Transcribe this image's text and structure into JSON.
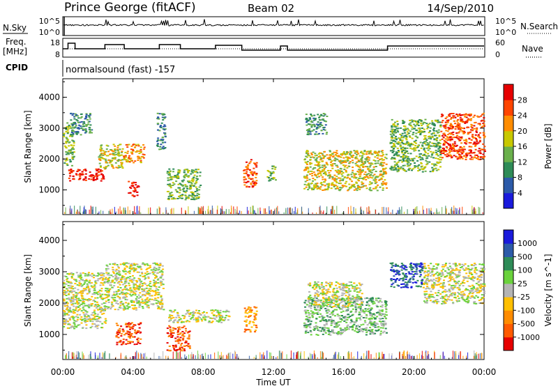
{
  "header": {
    "station": "Prince George (fitACF)",
    "beam": "Beam 02",
    "date": "14/Sep/2010"
  },
  "side_labels": {
    "nsky": "N.Sky",
    "nsearch": "N.Search",
    "freq": "Freq.",
    "freq_unit": "[MHz]",
    "nave": "Nave",
    "cpid": "CPID"
  },
  "cpid_text": "normalsound (fast) -157",
  "ticks": {
    "nsky_top": "10^5",
    "nsky_bottom": "10^0",
    "nsearch_top": "10^5",
    "nsearch_bottom": "10^0",
    "freq_top": "18",
    "freq_bottom": "8",
    "nave_top": "60",
    "nave_bottom": "0"
  },
  "chart_data": [
    {
      "type": "heatmap",
      "panel": "power",
      "ylabel": "Slant Range [km]",
      "yticks": [
        "1000",
        "2000",
        "3000",
        "4000"
      ],
      "ylim": [
        200,
        4600
      ],
      "xlim_hours": [
        0,
        24
      ],
      "colorbar": {
        "label": "Power [dB]",
        "ticks": [
          "4",
          "8",
          "12",
          "16",
          "20",
          "24",
          "28"
        ],
        "colors": [
          "#1a1adc",
          "#2c5aa8",
          "#2e8b57",
          "#6ab04c",
          "#c8c800",
          "#ff8c00",
          "#ff4500",
          "#e60000"
        ]
      },
      "echo_regions": [
        {
          "t0": 0.0,
          "t1": 0.6,
          "r0": 1800,
          "r1": 3200,
          "level": 3
        },
        {
          "t0": 0.3,
          "t1": 2.3,
          "r0": 1300,
          "r1": 1700,
          "level": 7
        },
        {
          "t0": 0.4,
          "t1": 1.6,
          "r0": 2800,
          "r1": 3500,
          "level": 2
        },
        {
          "t0": 2.0,
          "t1": 3.4,
          "r0": 1700,
          "r1": 2500,
          "level": 4
        },
        {
          "t0": 3.4,
          "t1": 4.6,
          "r0": 1900,
          "r1": 2500,
          "level": 5
        },
        {
          "t0": 3.7,
          "t1": 4.3,
          "r0": 800,
          "r1": 1300,
          "level": 7
        },
        {
          "t0": 5.3,
          "t1": 5.8,
          "r0": 2300,
          "r1": 3500,
          "level": 2
        },
        {
          "t0": 5.9,
          "t1": 7.8,
          "r0": 700,
          "r1": 1700,
          "level": 3
        },
        {
          "t0": 10.2,
          "t1": 11.0,
          "r0": 1100,
          "r1": 2000,
          "level": 6
        },
        {
          "t0": 11.6,
          "t1": 12.1,
          "r0": 1300,
          "r1": 1800,
          "level": 3
        },
        {
          "t0": 13.7,
          "t1": 18.4,
          "r0": 1000,
          "r1": 2300,
          "level": 4
        },
        {
          "t0": 13.8,
          "t1": 15.0,
          "r0": 2800,
          "r1": 3500,
          "level": 2
        },
        {
          "t0": 18.6,
          "t1": 21.5,
          "r0": 1600,
          "r1": 3300,
          "level": 3
        },
        {
          "t0": 21.5,
          "t1": 24.0,
          "r0": 2000,
          "r1": 3500,
          "level": 6
        }
      ]
    },
    {
      "type": "heatmap",
      "panel": "velocity",
      "ylabel": "Slant Range [km]",
      "yticks": [
        "1000",
        "2000",
        "3000",
        "4000"
      ],
      "ylim": [
        200,
        4600
      ],
      "xlim_hours": [
        0,
        24
      ],
      "colorbar": {
        "label": "Velocity [m s^-1]",
        "ticks": [
          "-1000",
          "-500",
          "-100",
          "-25",
          "25",
          "100",
          "500",
          "1000"
        ],
        "colors": [
          "#e60000",
          "#ff5a00",
          "#ff8c00",
          "#ffbf00",
          "#b4b4b4",
          "#6ad23c",
          "#2e8b57",
          "#2c5aa8",
          "#1a1adc"
        ]
      },
      "echo_regions": [
        {
          "t0": 0.0,
          "t1": 2.4,
          "r0": 1200,
          "r1": 3000,
          "level": 4
        },
        {
          "t0": 2.4,
          "t1": 5.7,
          "r0": 1800,
          "r1": 3300,
          "level": 4
        },
        {
          "t0": 3.0,
          "t1": 4.4,
          "r0": 700,
          "r1": 1400,
          "level": 1
        },
        {
          "t0": 5.9,
          "t1": 7.2,
          "r0": 500,
          "r1": 1300,
          "level": 1
        },
        {
          "t0": 6.0,
          "t1": 9.5,
          "r0": 1400,
          "r1": 1800,
          "level": 4
        },
        {
          "t0": 10.3,
          "t1": 11.0,
          "r0": 1100,
          "r1": 1900,
          "level": 2
        },
        {
          "t0": 13.7,
          "t1": 18.4,
          "r0": 1000,
          "r1": 2200,
          "level": 5
        },
        {
          "t0": 13.9,
          "t1": 17.0,
          "r0": 1900,
          "r1": 2700,
          "level": 4
        },
        {
          "t0": 18.6,
          "t1": 20.5,
          "r0": 2500,
          "r1": 3300,
          "level": 7
        },
        {
          "t0": 20.5,
          "t1": 24.0,
          "r0": 2000,
          "r1": 3300,
          "level": 4
        }
      ]
    }
  ],
  "xaxis": {
    "label": "Time UT",
    "ticks": [
      "00:00",
      "04:00",
      "08:00",
      "12:00",
      "16:00",
      "20:00",
      "00:00"
    ]
  }
}
